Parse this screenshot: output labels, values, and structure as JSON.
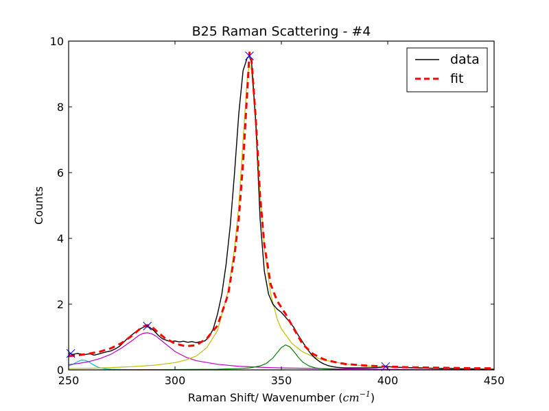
{
  "chart_data": {
    "type": "line",
    "title": "B25 Raman Scattering - #4",
    "xlabel": "Raman Shift/ Wavenumber (",
    "xlabel_unit": "cm",
    "xlabel_exponent": "−1",
    "xlabel_close": ")",
    "ylabel": "Counts",
    "xlim": [
      250,
      450
    ],
    "ylim": [
      0,
      10
    ],
    "x_ticks": [
      250,
      300,
      350,
      400,
      450
    ],
    "y_ticks": [
      0,
      2,
      4,
      6,
      8,
      10
    ],
    "grid": false,
    "legend_position": "top-right",
    "legend": [
      {
        "label": "data",
        "color": "#000000",
        "style": "solid"
      },
      {
        "label": "fit",
        "color": "#ff0000",
        "style": "dashed"
      }
    ],
    "series": [
      {
        "name": "data",
        "color": "#000000",
        "x": [
          250,
          252,
          254,
          256,
          258,
          260,
          262,
          264,
          266,
          268,
          270,
          272,
          274,
          276,
          278,
          280,
          282,
          284,
          286,
          288,
          290,
          292,
          294,
          296,
          298,
          300,
          302,
          304,
          306,
          308,
          310,
          312,
          314,
          316,
          318,
          320,
          322,
          324,
          326,
          328,
          330,
          332,
          334,
          335,
          336,
          338,
          340,
          342,
          344,
          346,
          348,
          350,
          352,
          354,
          356,
          358,
          360,
          362,
          364,
          366,
          368,
          370,
          372,
          374,
          376,
          378,
          380,
          385,
          390,
          395,
          400,
          405,
          410,
          415,
          420,
          425,
          430,
          435,
          440,
          445,
          450
        ],
        "y": [
          0.5,
          0.47,
          0.5,
          0.48,
          0.47,
          0.49,
          0.45,
          0.48,
          0.52,
          0.55,
          0.58,
          0.64,
          0.72,
          0.85,
          0.98,
          1.08,
          1.18,
          1.26,
          1.32,
          1.3,
          1.2,
          1.06,
          0.95,
          0.9,
          0.86,
          0.88,
          0.85,
          0.87,
          0.84,
          0.86,
          0.83,
          0.86,
          0.88,
          1.0,
          1.25,
          1.7,
          2.3,
          3.2,
          4.4,
          6.0,
          7.8,
          9.1,
          9.5,
          9.52,
          9.35,
          7.5,
          4.6,
          3.0,
          2.3,
          2.0,
          1.85,
          1.75,
          1.6,
          1.45,
          1.28,
          1.05,
          0.85,
          0.65,
          0.48,
          0.35,
          0.25,
          0.18,
          0.13,
          0.1,
          0.08,
          0.07,
          0.06,
          0.06,
          0.06,
          0.07,
          0.1,
          0.08,
          0.07,
          0.06,
          0.05,
          0.04,
          0.04,
          0.03,
          0.03,
          0.02,
          0.02
        ]
      },
      {
        "name": "fit",
        "color": "#ff0000",
        "x": [
          250,
          255,
          260,
          265,
          270,
          275,
          280,
          283,
          285,
          287,
          289,
          291,
          295,
          300,
          305,
          310,
          315,
          320,
          325,
          328,
          330,
          332,
          334,
          335,
          336,
          338,
          340,
          342,
          345,
          348,
          350,
          352,
          355,
          360,
          365,
          370,
          375,
          380,
          390,
          400,
          410,
          420,
          430,
          440,
          450
        ],
        "y": [
          0.42,
          0.45,
          0.5,
          0.56,
          0.66,
          0.82,
          1.05,
          1.22,
          1.32,
          1.36,
          1.32,
          1.2,
          0.98,
          0.8,
          0.72,
          0.75,
          0.96,
          1.35,
          2.3,
          3.5,
          4.6,
          6.3,
          8.5,
          9.65,
          9.4,
          7.6,
          5.3,
          3.8,
          2.6,
          2.1,
          1.9,
          1.7,
          1.35,
          0.78,
          0.48,
          0.32,
          0.24,
          0.18,
          0.13,
          0.1,
          0.08,
          0.07,
          0.06,
          0.05,
          0.05
        ]
      },
      {
        "name": "",
        "color": "#00bfbf",
        "x": [
          250,
          252,
          254,
          256,
          258,
          260,
          262,
          264,
          266,
          268,
          270,
          275,
          280,
          300,
          350,
          450
        ],
        "y": [
          0.12,
          0.17,
          0.24,
          0.3,
          0.29,
          0.22,
          0.14,
          0.08,
          0.05,
          0.03,
          0.02,
          0.01,
          0.005,
          0.0,
          0.0,
          0.0
        ]
      },
      {
        "name": "",
        "color": "#bf00bf",
        "x": [
          250,
          255,
          260,
          265,
          270,
          275,
          280,
          283,
          285,
          287,
          289,
          291,
          295,
          300,
          305,
          310,
          320,
          330,
          340,
          350,
          360,
          380,
          400,
          425,
          450
        ],
        "y": [
          0.16,
          0.2,
          0.26,
          0.35,
          0.48,
          0.67,
          0.9,
          1.05,
          1.11,
          1.13,
          1.1,
          1.03,
          0.82,
          0.56,
          0.39,
          0.28,
          0.17,
          0.11,
          0.08,
          0.06,
          0.05,
          0.03,
          0.02,
          0.01,
          0.01
        ]
      },
      {
        "name": "",
        "color": "#bfbf00",
        "x": [
          250,
          260,
          270,
          280,
          290,
          300,
          305,
          310,
          315,
          320,
          325,
          328,
          330,
          332,
          334,
          335,
          336,
          338,
          340,
          342,
          345,
          348,
          350,
          355,
          360,
          365,
          370,
          380,
          390,
          400,
          425,
          450
        ],
        "y": [
          0.04,
          0.05,
          0.07,
          0.1,
          0.14,
          0.22,
          0.3,
          0.42,
          0.68,
          1.2,
          2.4,
          3.7,
          5.0,
          7.0,
          8.9,
          9.3,
          9.1,
          7.6,
          5.3,
          3.7,
          2.3,
          1.55,
          1.25,
          0.8,
          0.55,
          0.4,
          0.3,
          0.18,
          0.12,
          0.09,
          0.05,
          0.03
        ]
      },
      {
        "name": "",
        "color": "#008000",
        "x": [
          250,
          300,
          320,
          330,
          335,
          340,
          343,
          346,
          348,
          350,
          352,
          354,
          356,
          358,
          360,
          363,
          366,
          370,
          380,
          400,
          450
        ],
        "y": [
          0.0,
          0.01,
          0.02,
          0.04,
          0.06,
          0.12,
          0.2,
          0.36,
          0.52,
          0.68,
          0.76,
          0.7,
          0.55,
          0.38,
          0.24,
          0.12,
          0.06,
          0.03,
          0.01,
          0.0,
          0.0
        ]
      }
    ],
    "peak_markers": [
      {
        "x": 251,
        "y": 0.5
      },
      {
        "x": 287,
        "y": 1.33
      },
      {
        "x": 335,
        "y": 9.55
      },
      {
        "x": 399,
        "y": 0.1
      }
    ],
    "marker_color": "#0000ff"
  }
}
